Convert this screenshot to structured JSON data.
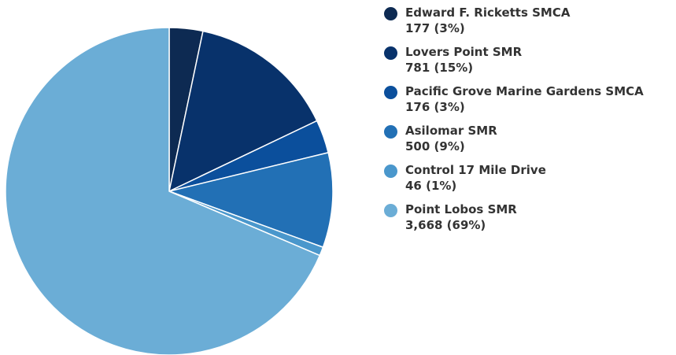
{
  "chart_data": {
    "type": "pie",
    "categories": [
      "Edward F. Ricketts SMCA",
      "Lovers Point SMR",
      "Pacific Grove Marine Gardens SMCA",
      "Asilomar SMR",
      "Control 17 Mile Drive",
      "Point Lobos SMR"
    ],
    "values": [
      177,
      781,
      176,
      500,
      46,
      3668
    ],
    "value_labels": [
      "177 (3%)",
      "781 (15%)",
      "176 (3%)",
      "500 (9%)",
      "46 (1%)",
      "3,668 (69%)"
    ],
    "colors": [
      "#0d2a52",
      "#08326b",
      "#0b4f9c",
      "#2270b5",
      "#4a97cc",
      "#6badd6"
    ],
    "legend_position": "right"
  }
}
